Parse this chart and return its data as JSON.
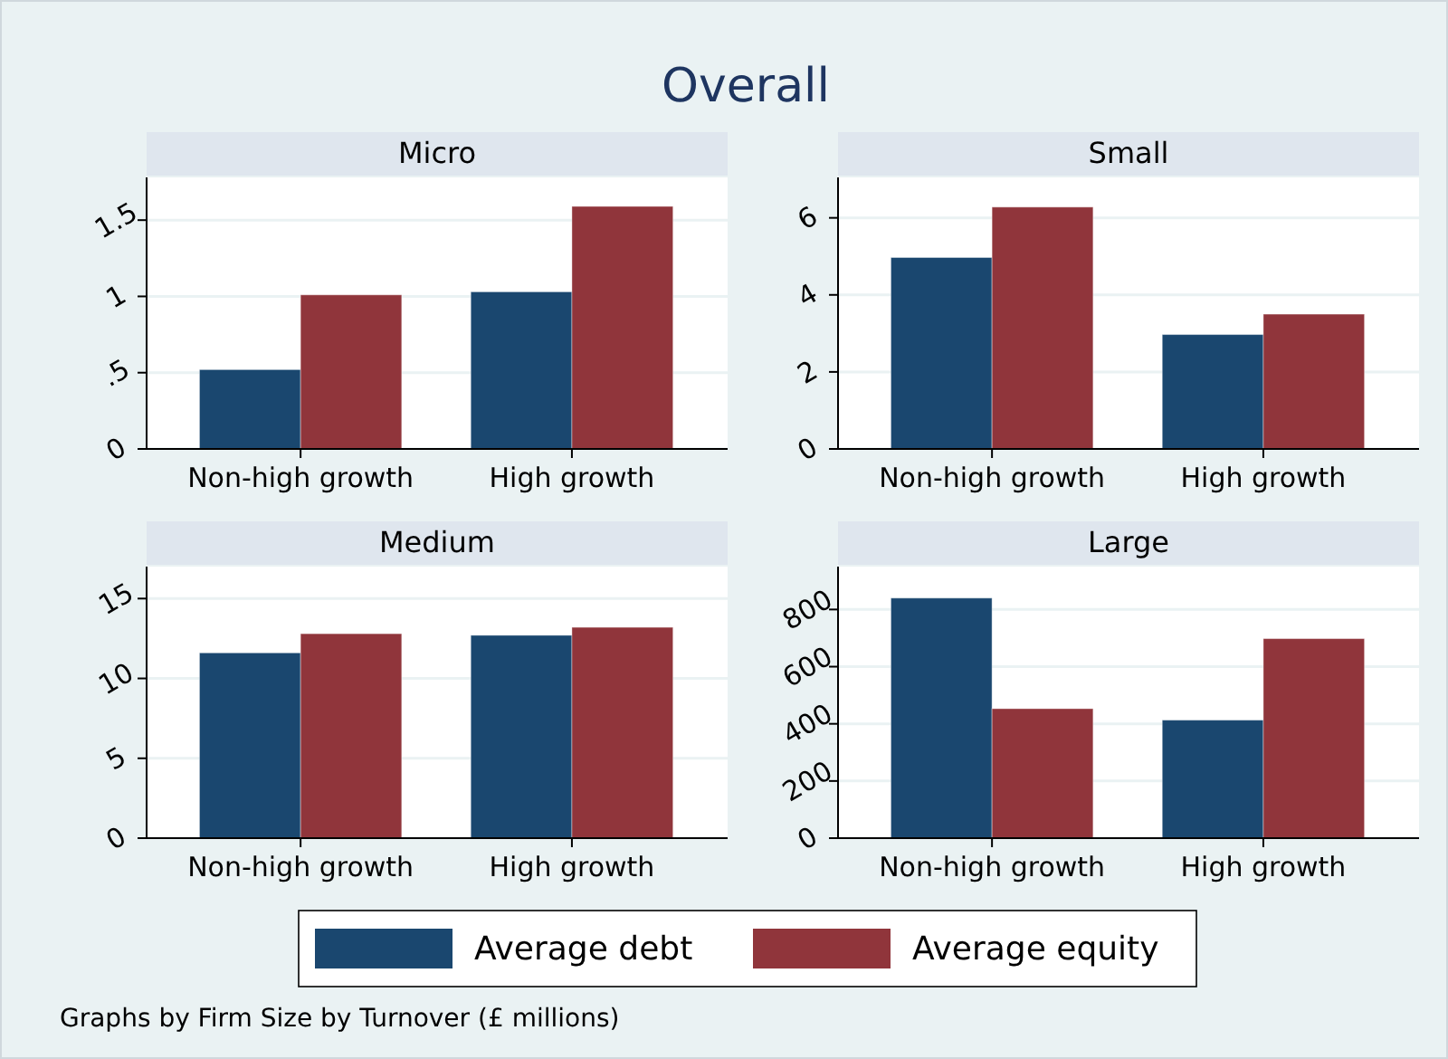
{
  "chart_data": [
    {
      "type": "bar",
      "title": "Micro",
      "annotations": [
        "Overall"
      ],
      "categories": [
        "Non-high growth",
        "High growth"
      ],
      "legend": "bottom",
      "grid": "y",
      "ylim": [
        0,
        1.78
      ],
      "yticks": [
        0,
        {
          "value": 0.5,
          "label": ".5"
        },
        1,
        1.5
      ],
      "series": [
        {
          "name": "Average debt",
          "color": "#1a476f",
          "values": [
            0.52,
            1.03
          ]
        },
        {
          "name": "Average equity",
          "color": "#90353b",
          "values": [
            1.01,
            1.59
          ]
        }
      ]
    },
    {
      "type": "bar",
      "title": "Small",
      "categories": [
        "Non-high growth",
        "High growth"
      ],
      "grid": "y",
      "ylim": [
        0,
        7.05
      ],
      "yticks": [
        0,
        2,
        4,
        6
      ],
      "series": [
        {
          "color": "#1a476f",
          "values": [
            4.97,
            2.97
          ]
        },
        {
          "color": "#90353b",
          "values": [
            6.28,
            3.5
          ]
        }
      ]
    },
    {
      "type": "bar",
      "title": "Medium",
      "categories": [
        "Non-high growth",
        "High growth"
      ],
      "grid": "y",
      "ylim": [
        0,
        17
      ],
      "yticks": [
        0,
        5,
        10,
        15
      ],
      "series": [
        {
          "color": "#1a476f",
          "values": [
            11.6,
            12.7
          ]
        },
        {
          "color": "#90353b",
          "values": [
            12.8,
            13.2
          ]
        }
      ]
    },
    {
      "type": "bar",
      "title": "Large",
      "annotations": [
        "Graphs by Firm Size by Turnover (£ millions)"
      ],
      "categories": [
        "Non-high growth",
        "High growth"
      ],
      "grid": "y",
      "ylim": [
        0,
        950
      ],
      "yticks": [
        0,
        200,
        400,
        600,
        800
      ],
      "series": [
        {
          "color": "#1a476f",
          "values": [
            840,
            413
          ]
        },
        {
          "color": "#90353b",
          "values": [
            453,
            698
          ]
        }
      ]
    }
  ]
}
